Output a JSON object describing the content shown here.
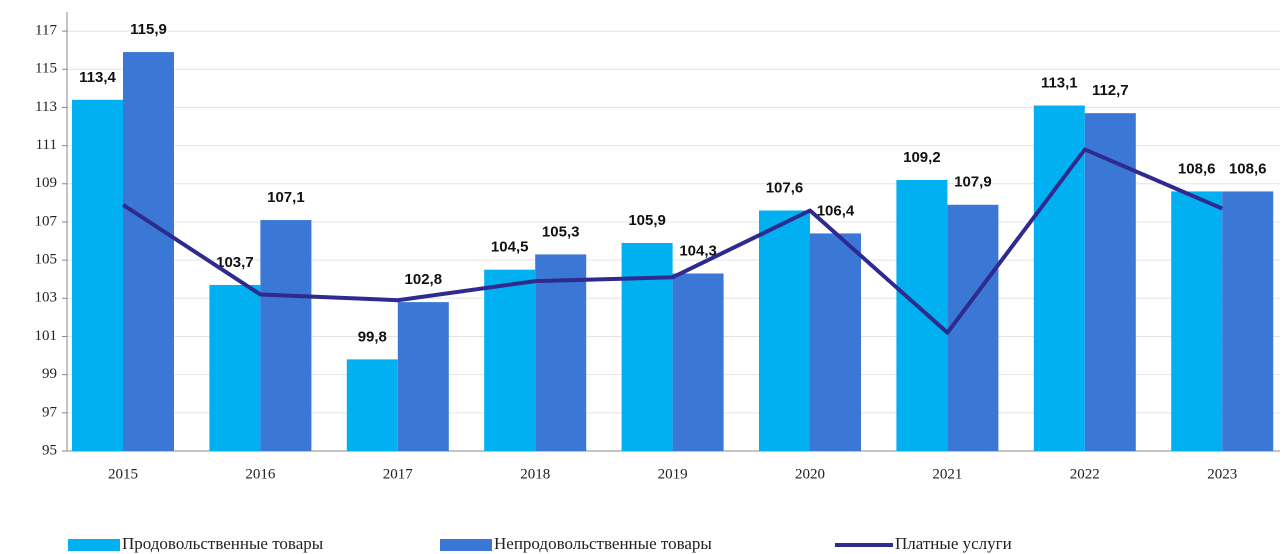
{
  "chart_data": {
    "type": "bar_line",
    "categories": [
      "2015",
      "2016",
      "2017",
      "2018",
      "2019",
      "2020",
      "2021",
      "2022",
      "2023"
    ],
    "series": [
      {
        "name": "Продовольственные товары",
        "color": "#00b0f0",
        "kind": "bar",
        "values": [
          113.4,
          103.7,
          99.8,
          104.5,
          105.9,
          107.6,
          109.2,
          113.1,
          108.6
        ],
        "value_labels": [
          "113,4",
          "103,7",
          "99,8",
          "104,5",
          "105,9",
          "107,6",
          "109,2",
          "113,1",
          "108,6"
        ]
      },
      {
        "name": "Непродовольственные товары",
        "color": "#3b78d6",
        "kind": "bar",
        "values": [
          115.9,
          107.1,
          102.8,
          105.3,
          104.3,
          106.4,
          107.9,
          112.7,
          108.6
        ],
        "value_labels": [
          "115,9",
          "107,1",
          "102,8",
          "105,3",
          "104,3",
          "106,4",
          "107,9",
          "112,7",
          "108,6"
        ]
      },
      {
        "name": "Платные услуги",
        "color": "#2e2a90",
        "kind": "line",
        "values": [
          107.9,
          103.2,
          102.9,
          103.9,
          104.1,
          107.6,
          101.2,
          110.8,
          107.7
        ]
      }
    ],
    "ylim": [
      95,
      118
    ],
    "yticks": [
      95,
      97,
      99,
      101,
      103,
      105,
      107,
      109,
      111,
      113,
      115,
      117
    ],
    "grid": true
  }
}
